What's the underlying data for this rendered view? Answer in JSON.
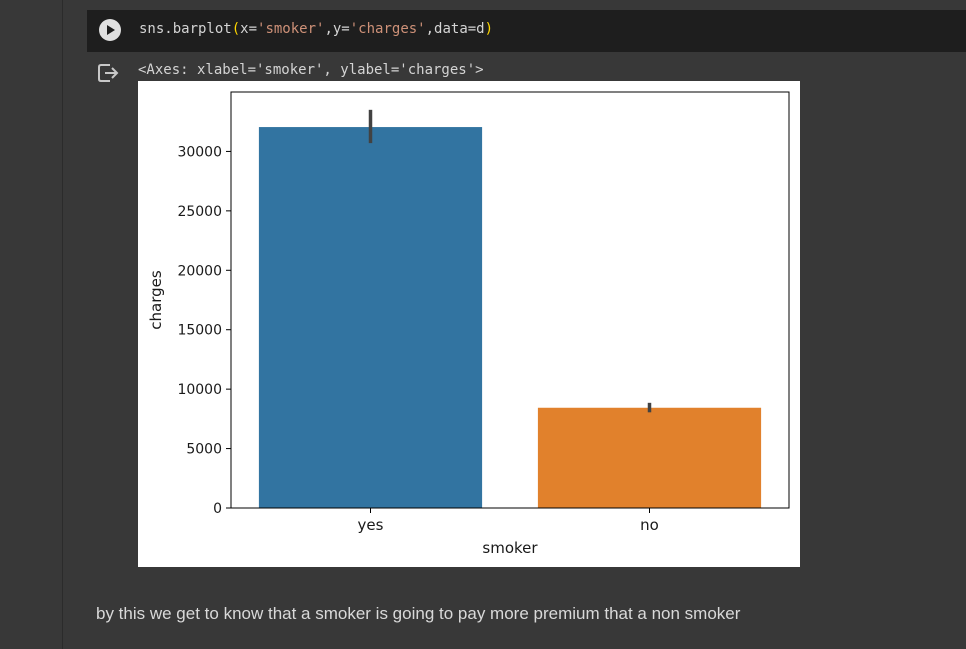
{
  "code_cell": {
    "run_icon": "play-circle-icon",
    "code": {
      "prefix": "sns.barplot",
      "open_paren": "(",
      "arg1_key": "x=",
      "arg1_val": "'smoker'",
      "sep1": ",y=",
      "arg2_val": "'charges'",
      "sep2": ",data=d",
      "close_paren": ")"
    }
  },
  "output": {
    "icon": "output-redirect-icon",
    "text": "<Axes: xlabel='smoker', ylabel='charges'>"
  },
  "chart_data": {
    "type": "bar",
    "categories": [
      "yes",
      "no"
    ],
    "values": [
      32050,
      8434
    ],
    "error_bars": [
      [
        30700,
        33500
      ],
      [
        8050,
        8850
      ]
    ],
    "colors": [
      "#3274a1",
      "#e1812c"
    ],
    "xlabel": "smoker",
    "ylabel": "charges",
    "ylim": [
      0,
      35000
    ],
    "yticks": [
      0,
      5000,
      10000,
      15000,
      20000,
      25000,
      30000
    ],
    "ytick_labels": [
      "0",
      "5000",
      "10000",
      "15000",
      "20000",
      "25000",
      "30000"
    ]
  },
  "markdown": {
    "text": "by this we get to know that a smoker is going to pay more premium that a non smoker"
  }
}
